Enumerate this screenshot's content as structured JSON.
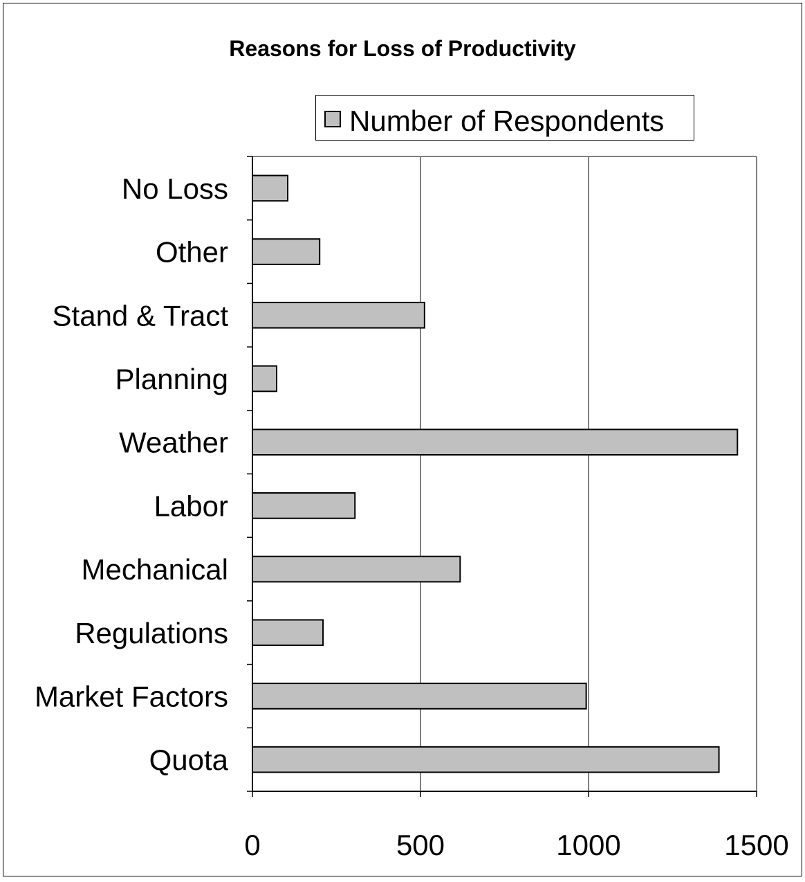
{
  "chart_data": {
    "type": "bar",
    "orientation": "horizontal",
    "title": "Reasons for Loss of Productivity",
    "categories": [
      "No Loss",
      "Other",
      "Stand & Tract",
      "Planning",
      "Weather",
      "Labor",
      "Mechanical",
      "Regulations",
      "Market Factors",
      "Quota"
    ],
    "series": [
      {
        "name": "Number of Respondents",
        "values": [
          105,
          200,
          512,
          72,
          1443,
          305,
          618,
          210,
          993,
          1388
        ],
        "color": "#c0c0c0"
      }
    ],
    "xlim": [
      0,
      1500
    ],
    "xticks": [
      "0",
      "500",
      "1000",
      "1500"
    ],
    "xlabel": "",
    "ylabel": "",
    "grid": "vertical",
    "legend": "top-right"
  }
}
